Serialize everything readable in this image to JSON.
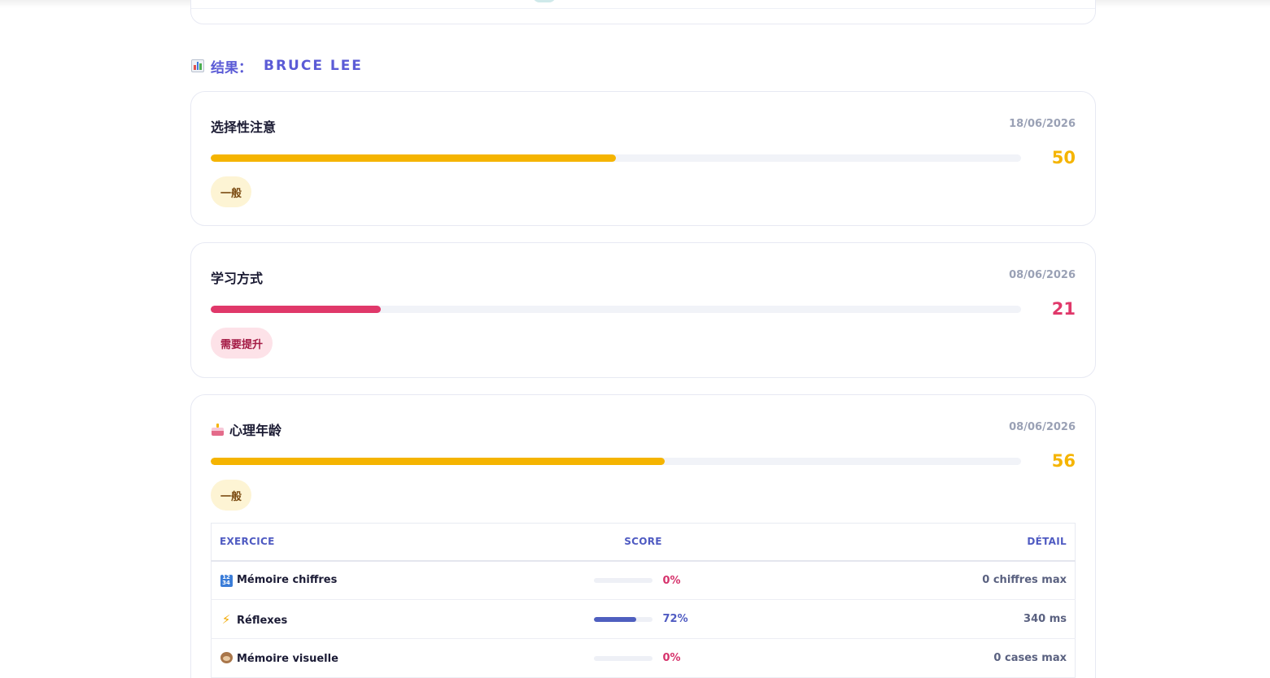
{
  "section": {
    "prefix": "结果：",
    "name": "BRUCE LEE"
  },
  "cards": [
    {
      "title": "选择性注意",
      "date": "18/06/2026",
      "score": "50",
      "score_value": 50,
      "color": "#f5b400",
      "badge": "一般",
      "badge_kind": "average"
    },
    {
      "title": "学习方式",
      "date": "08/06/2026",
      "score": "21",
      "score_value": 21,
      "color": "#e0386a",
      "badge": "需要提升",
      "badge_kind": "low"
    },
    {
      "title": "心理年龄",
      "icon": "birthday-cake-icon",
      "date": "08/06/2026",
      "score": "56",
      "score_value": 56,
      "color": "#f5b400",
      "badge": "一般",
      "badge_kind": "average"
    }
  ],
  "exercise_table": {
    "headers": {
      "exercise": "EXERCICE",
      "score": "SCORE",
      "detail": "DÉTAIL"
    },
    "rows": [
      {
        "icon": "input-numbers-icon",
        "name": "Mémoire chiffres",
        "percent": "0%",
        "percent_value": 0,
        "color": "#d6336c",
        "detail": "0 chiffres max"
      },
      {
        "icon": "lightning-bolt-icon",
        "name": "Réflexes",
        "percent": "72%",
        "percent_value": 72,
        "color": "#4f5bc2",
        "detail": "340 ms"
      },
      {
        "icon": "see-no-evil-monkey-icon",
        "name": "Mémoire visuelle",
        "percent": "0%",
        "percent_value": 0,
        "color": "#d6336c",
        "detail": "0 cases max"
      }
    ]
  }
}
